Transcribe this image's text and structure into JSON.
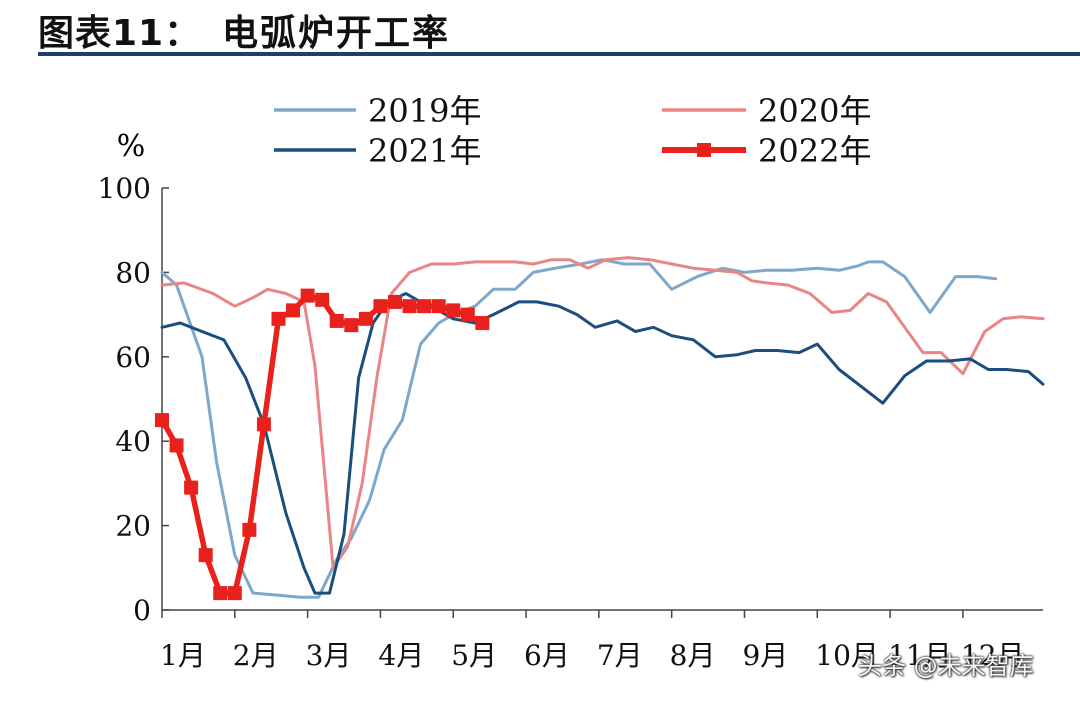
{
  "header": {
    "figure_label": "图表11：",
    "title": "电弧炉开工率"
  },
  "watermark": "头条 @未来智库",
  "chart_data": {
    "type": "line",
    "title": "",
    "ylabel": "%",
    "xlabel": "",
    "ylim": [
      0,
      100
    ],
    "yticks": [
      0,
      20,
      40,
      60,
      80,
      100
    ],
    "xlim": [
      1,
      13.1
    ],
    "month_labels": [
      "1月",
      "2月",
      "3月",
      "4月",
      "5月",
      "6月",
      "7月",
      "8月",
      "9月",
      "10月",
      "11月",
      "12月"
    ],
    "grid": false,
    "legend_position": "top",
    "series": [
      {
        "name": "2019年",
        "color": "#7fa7c9",
        "marker": "none",
        "x": [
          1.0,
          1.2,
          1.55,
          1.75,
          2.0,
          2.25,
          2.6,
          2.9,
          3.15,
          3.4,
          3.6,
          3.85,
          4.05,
          4.3,
          4.55,
          4.8,
          5.0,
          5.3,
          5.55,
          5.85,
          6.1,
          6.4,
          6.75,
          7.05,
          7.35,
          7.7,
          8.0,
          8.35,
          8.7,
          9.0,
          9.3,
          9.65,
          10.0,
          10.3,
          10.55,
          10.7,
          10.9,
          11.2,
          11.55,
          11.9,
          12.2,
          12.45
        ],
        "y": [
          80,
          77,
          60,
          35,
          13,
          4,
          3.5,
          3,
          3,
          12,
          17,
          26,
          38,
          45,
          63,
          68,
          70,
          72,
          76,
          76,
          80,
          81,
          82,
          83,
          82,
          82,
          76,
          79,
          81,
          80,
          80.5,
          80.5,
          81,
          80.5,
          81.5,
          82.5,
          82.5,
          79,
          70.5,
          79,
          79,
          78.5
        ]
      },
      {
        "name": "2020年",
        "color": "#e98585",
        "marker": "none",
        "x": [
          1.0,
          1.3,
          1.7,
          2.0,
          2.25,
          2.45,
          2.7,
          2.95,
          3.1,
          3.35,
          3.55,
          3.75,
          3.95,
          4.15,
          4.4,
          4.7,
          5.0,
          5.3,
          5.6,
          5.85,
          6.1,
          6.35,
          6.6,
          6.85,
          7.1,
          7.4,
          7.7,
          8.0,
          8.3,
          8.6,
          8.9,
          9.1,
          9.3,
          9.6,
          9.9,
          10.2,
          10.45,
          10.7,
          10.95,
          11.2,
          11.45,
          11.7,
          12.0,
          12.3,
          12.55,
          12.8,
          13.1
        ],
        "y": [
          77,
          77.5,
          75,
          72,
          74,
          76,
          75,
          73,
          58,
          10,
          15,
          30,
          55,
          75,
          80,
          82,
          82,
          82.5,
          82.5,
          82.5,
          82,
          83,
          83,
          81,
          83,
          83.5,
          83,
          82,
          81,
          80.5,
          80,
          78,
          77.5,
          77,
          75,
          70.5,
          71,
          75,
          73,
          67,
          61,
          61,
          56,
          66,
          69,
          69.5,
          69
        ]
      },
      {
        "name": "2021年",
        "color": "#1a4e7e",
        "marker": "none",
        "x": [
          1.0,
          1.25,
          1.55,
          1.85,
          2.15,
          2.4,
          2.7,
          2.95,
          3.1,
          3.3,
          3.5,
          3.7,
          3.9,
          4.1,
          4.35,
          4.55,
          4.8,
          5.0,
          5.3,
          5.55,
          5.9,
          6.15,
          6.45,
          6.7,
          6.95,
          7.25,
          7.5,
          7.75,
          8.0,
          8.3,
          8.6,
          8.9,
          9.15,
          9.45,
          9.75,
          10.0,
          10.3,
          10.6,
          10.9,
          11.2,
          11.5,
          11.8,
          12.1,
          12.35,
          12.6,
          12.9,
          13.1
        ],
        "y": [
          67,
          68,
          66,
          64,
          55,
          44,
          23,
          10,
          4,
          4,
          18,
          55,
          68,
          73,
          75,
          73,
          71,
          69,
          68,
          70,
          73,
          73,
          72,
          70,
          67,
          68.5,
          66,
          67,
          65,
          64,
          60,
          60.5,
          61.5,
          61.5,
          61,
          63,
          57,
          53,
          49,
          55.5,
          59,
          59,
          59.5,
          57,
          57,
          56.5,
          53.5
        ]
      },
      {
        "name": "2022年",
        "color": "#e8211d",
        "marker": "square",
        "x": [
          1.0,
          1.2,
          1.4,
          1.6,
          1.8,
          2.0,
          2.2,
          2.4,
          2.6,
          2.8,
          3.0,
          3.2,
          3.4,
          3.6,
          3.8,
          4.0,
          4.2,
          4.4,
          4.6,
          4.8,
          5.0,
          5.2,
          5.4
        ],
        "y": [
          45,
          39,
          29,
          13,
          4,
          4,
          19,
          44,
          69,
          71,
          74.5,
          73.5,
          68.5,
          67.5,
          69,
          72,
          73,
          72,
          72,
          72,
          71,
          70,
          68
        ]
      }
    ]
  }
}
